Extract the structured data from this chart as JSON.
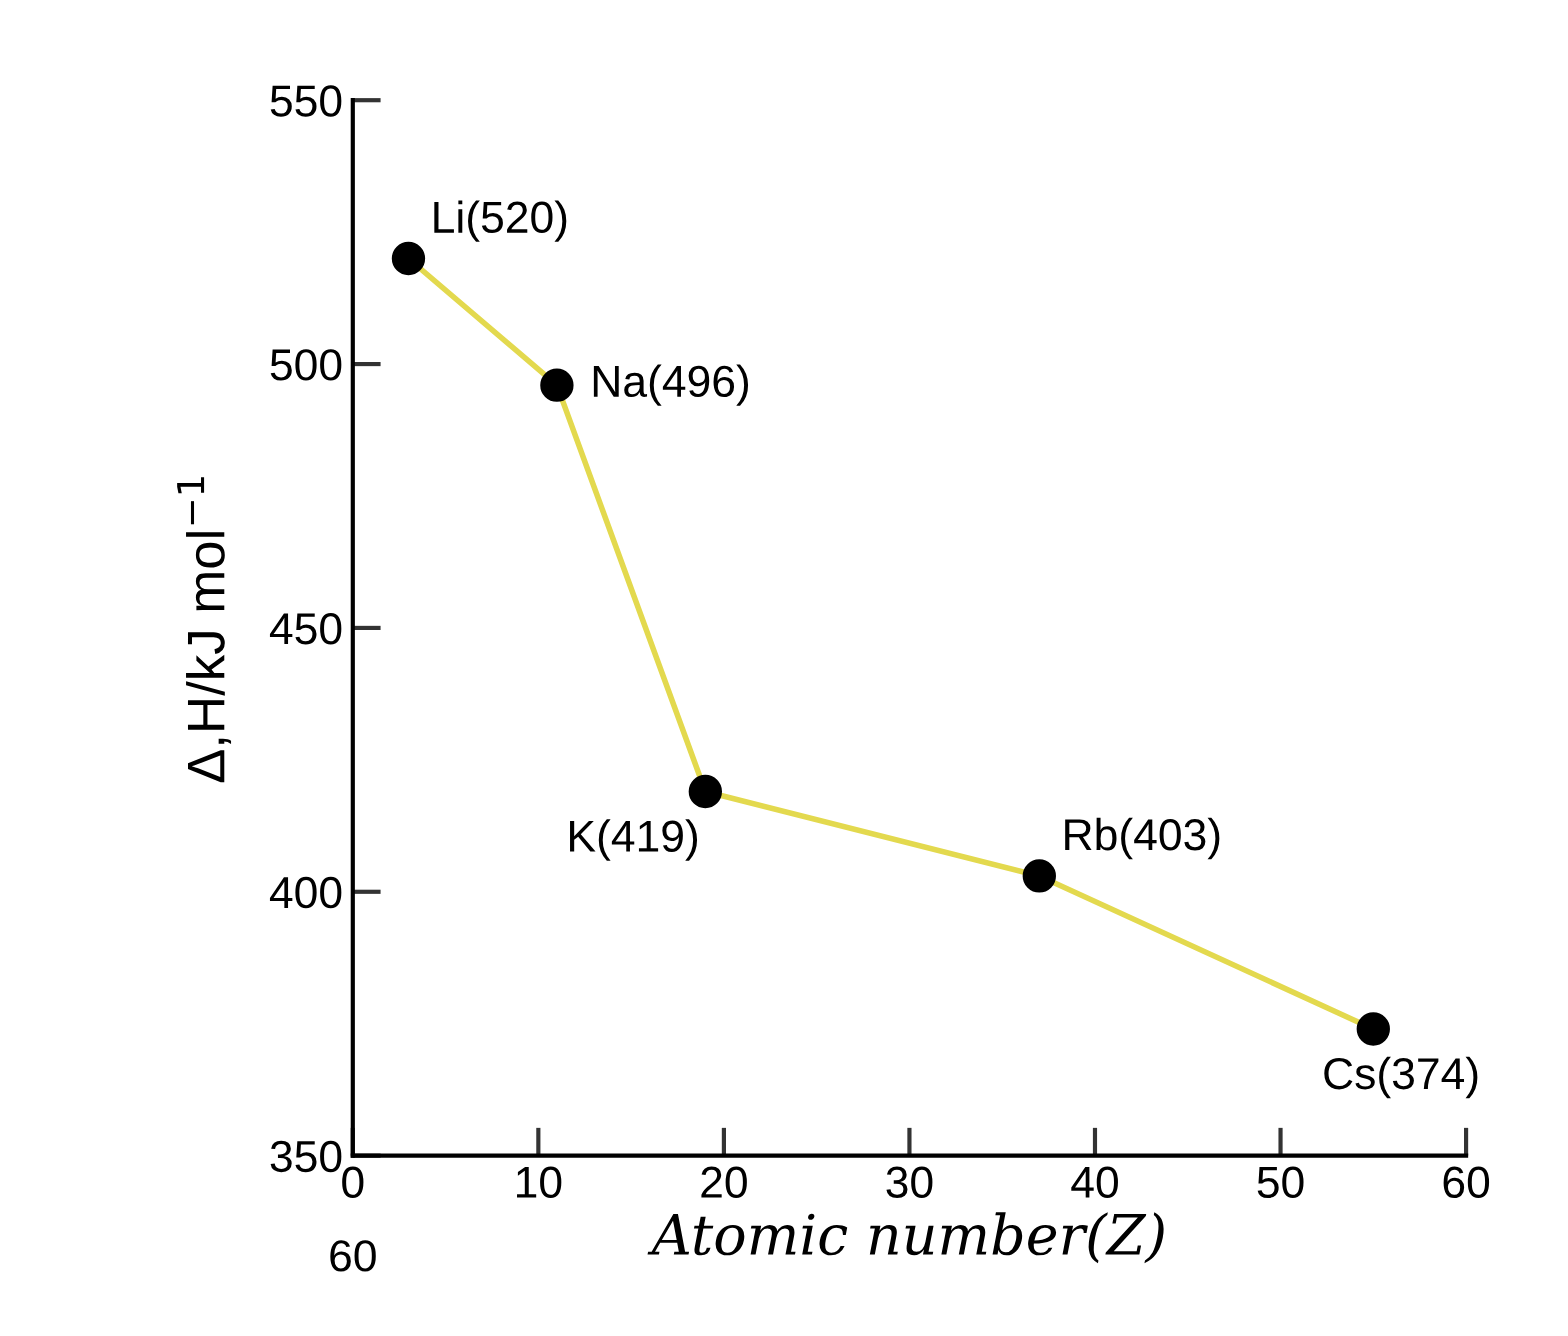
{
  "chart_data": {
    "type": "line",
    "xlabel": "Atomic number(Z)",
    "ylabel": "Δ,H/kJ mol$^{−1}$",
    "x": [
      3,
      11,
      19,
      37,
      55
    ],
    "series": [
      {
        "color": "#e3d94e",
        "values": [
          520,
          496,
          419,
          403,
          374
        ],
        "value_labels": [
          "Li(520)",
          "Na(496)",
          "K(419)",
          "Rb(403)",
          "Cs(374)"
        ]
      }
    ],
    "xlim": [
      0,
      60
    ],
    "xticks": [
      0,
      10,
      20,
      30,
      40,
      50,
      60
    ],
    "ylim": [
      350,
      550
    ],
    "yticks": [
      350,
      400,
      450,
      500,
      550
    ],
    "marker": "circle",
    "line_style": "solid",
    "grid": false,
    "annotations": [
      "60"
    ]
  }
}
